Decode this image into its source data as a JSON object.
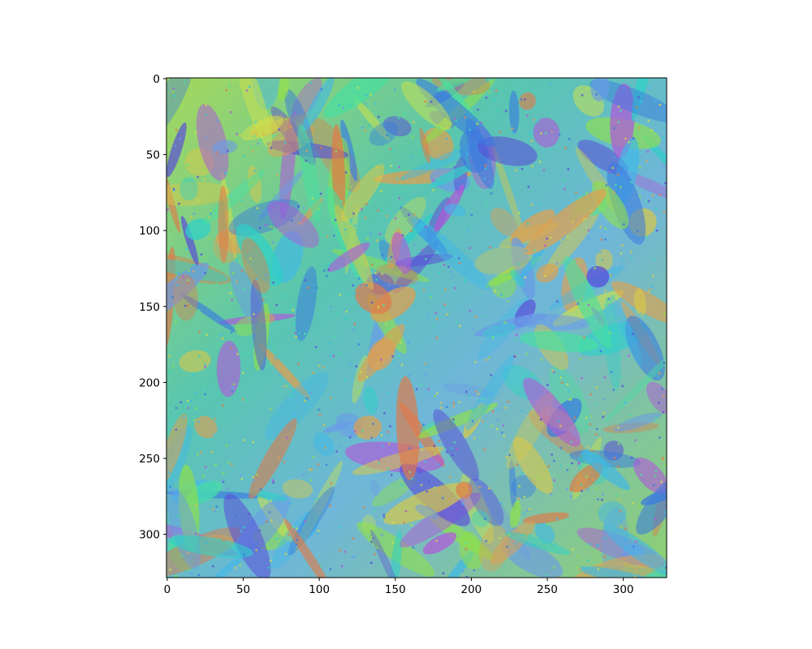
{
  "chart_data": {
    "type": "image",
    "xlim": [
      -0.5,
      328.5
    ],
    "ylim": [
      328.5,
      -0.5
    ],
    "xticks": [
      0,
      50,
      100,
      150,
      200,
      250,
      300
    ],
    "yticks": [
      0,
      50,
      100,
      150,
      200,
      250,
      300
    ]
  }
}
